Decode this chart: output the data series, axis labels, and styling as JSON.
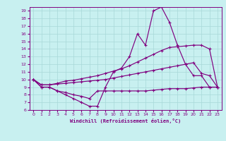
{
  "xlabel": "Windchill (Refroidissement éolien,°C)",
  "background_color": "#c8f0f0",
  "line_color": "#800080",
  "grid_color": "#a8d8d8",
  "xlim": [
    -0.5,
    23.5
  ],
  "ylim": [
    6,
    19.5
  ],
  "yticks": [
    6,
    7,
    8,
    9,
    10,
    11,
    12,
    13,
    14,
    15,
    16,
    17,
    18,
    19
  ],
  "xticks": [
    0,
    1,
    2,
    3,
    4,
    5,
    6,
    7,
    8,
    9,
    10,
    11,
    12,
    13,
    14,
    15,
    16,
    17,
    18,
    19,
    20,
    21,
    22,
    23
  ],
  "line1_x": [
    0,
    1,
    2,
    3,
    4,
    5,
    6,
    7,
    8,
    9,
    10,
    11,
    12,
    13,
    14,
    15,
    16,
    17,
    18,
    19,
    20,
    21,
    22,
    23
  ],
  "line1_y": [
    10.0,
    9.0,
    9.0,
    8.5,
    8.0,
    7.5,
    7.0,
    6.5,
    6.5,
    9.0,
    11.0,
    11.5,
    13.0,
    16.0,
    14.5,
    19.0,
    19.5,
    17.5,
    14.5,
    12.0,
    10.5,
    10.5,
    9.0,
    9.0
  ],
  "line2_x": [
    0,
    1,
    2,
    3,
    4,
    5,
    6,
    7,
    8,
    9,
    10,
    11,
    12,
    13,
    14,
    15,
    16,
    17,
    18,
    19,
    20,
    21,
    22,
    23
  ],
  "line2_y": [
    10.0,
    9.3,
    9.3,
    9.5,
    9.8,
    9.9,
    10.1,
    10.3,
    10.5,
    10.8,
    11.1,
    11.4,
    11.8,
    12.3,
    12.8,
    13.3,
    13.8,
    14.2,
    14.3,
    14.4,
    14.5,
    14.5,
    14.0,
    9.0
  ],
  "line3_x": [
    0,
    1,
    2,
    3,
    4,
    5,
    6,
    7,
    8,
    9,
    10,
    11,
    12,
    13,
    14,
    15,
    16,
    17,
    18,
    19,
    20,
    21,
    22,
    23
  ],
  "line3_y": [
    10.0,
    9.3,
    9.3,
    9.4,
    9.5,
    9.6,
    9.7,
    9.8,
    9.9,
    10.0,
    10.2,
    10.4,
    10.6,
    10.8,
    11.0,
    11.2,
    11.4,
    11.6,
    11.8,
    12.0,
    12.2,
    10.8,
    10.5,
    9.0
  ],
  "line4_x": [
    0,
    1,
    2,
    3,
    4,
    5,
    6,
    7,
    8,
    9,
    10,
    11,
    12,
    13,
    14,
    15,
    16,
    17,
    18,
    19,
    20,
    21,
    22,
    23
  ],
  "line4_y": [
    10.0,
    9.0,
    9.0,
    8.5,
    8.3,
    8.0,
    7.8,
    7.5,
    8.5,
    8.5,
    8.5,
    8.5,
    8.5,
    8.5,
    8.5,
    8.6,
    8.7,
    8.8,
    8.8,
    8.8,
    8.9,
    9.0,
    9.0,
    9.0
  ]
}
